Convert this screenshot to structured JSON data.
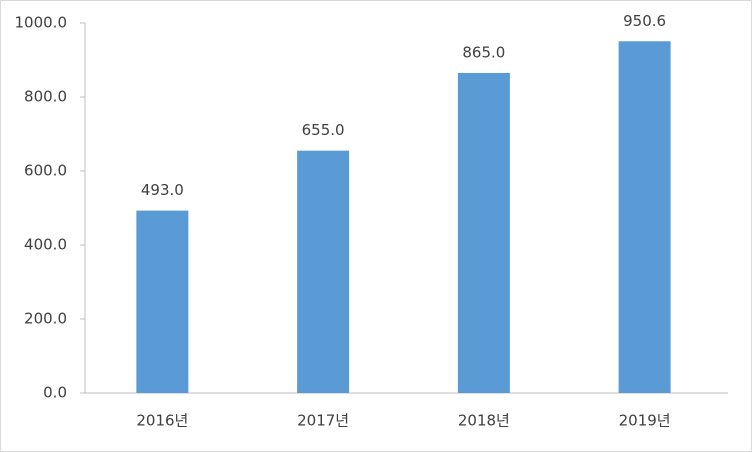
{
  "chart_data": {
    "type": "bar",
    "categories": [
      "2016년",
      "2017년",
      "2018년",
      "2019년"
    ],
    "values": [
      493.0,
      655.0,
      865.0,
      950.6
    ],
    "value_labels": [
      "493.0",
      "655.0",
      "865.0",
      "950.6"
    ],
    "color": "#5b9bd5",
    "ylim": [
      0,
      1000
    ],
    "yticks": [
      {
        "value": 0,
        "label": "0.0"
      },
      {
        "value": 200,
        "label": "200.0"
      },
      {
        "value": 400,
        "label": "400.0"
      },
      {
        "value": 600,
        "label": "600.0"
      },
      {
        "value": 800,
        "label": "800.0"
      },
      {
        "value": 1000,
        "label": "1000.0"
      }
    ],
    "grid": false
  }
}
